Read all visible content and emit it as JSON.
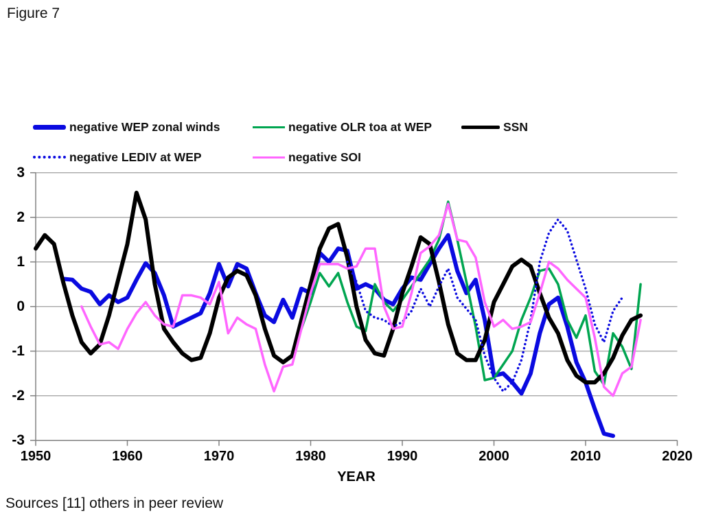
{
  "figure_label": "Figure 7",
  "source_note": "Sources [11] others in peer review",
  "colors": {
    "wep_blue": "#0a0ae0",
    "olr_green": "#00a550",
    "ssn_black": "#000000",
    "soi_pink": "#ff66ff",
    "gridline": "#a6a6a6",
    "axis": "#808080"
  },
  "chart_data": {
    "type": "line",
    "title": "",
    "xlabel": "YEAR",
    "ylabel": "",
    "xlim": [
      1950,
      2020
    ],
    "ylim": [
      -3,
      3
    ],
    "x_ticks": [
      1950,
      1960,
      1970,
      1980,
      1990,
      2000,
      2010,
      2020
    ],
    "y_ticks": [
      3,
      2,
      1,
      0,
      -1,
      -2,
      -3
    ],
    "grid": "horizontal",
    "legend_position": "top",
    "legend_rows": [
      [
        0,
        1,
        2
      ],
      [
        3,
        4
      ]
    ],
    "series": [
      {
        "name": "negative WEP zonal winds",
        "color": "#0a0ae0",
        "style": "solid",
        "width": 6,
        "start_year": 1953,
        "values": [
          0.62,
          0.6,
          0.4,
          0.33,
          0.05,
          0.25,
          0.1,
          0.2,
          0.6,
          0.97,
          0.75,
          0.25,
          -0.45,
          -0.35,
          -0.25,
          -0.15,
          0.3,
          0.95,
          0.45,
          0.95,
          0.85,
          0.3,
          -0.2,
          -0.35,
          0.15,
          -0.25,
          0.4,
          0.3,
          1.2,
          1.0,
          1.3,
          1.25,
          0.4,
          0.5,
          0.4,
          0.15,
          0.05,
          0.4,
          0.65,
          0.6,
          0.95,
          1.3,
          1.6,
          0.8,
          0.3,
          0.6,
          -0.3,
          -1.55,
          -1.5,
          -1.7,
          -1.95,
          -1.5,
          -0.6,
          0.05,
          0.2,
          -0.45,
          -1.25,
          -1.7,
          -2.3,
          -2.85,
          -2.9
        ]
      },
      {
        "name": "negative OLR toa at WEP",
        "color": "#00a550",
        "style": "solid",
        "width": 3.5,
        "start_year": 1979,
        "values": [
          -0.5,
          0.1,
          0.75,
          0.45,
          0.75,
          0.1,
          -0.45,
          -0.55,
          0.5,
          0.1,
          -0.1,
          0.15,
          0.45,
          0.75,
          1.05,
          1.5,
          2.35,
          1.5,
          0.55,
          -0.45,
          -1.65,
          -1.6,
          -1.3,
          -1.0,
          -0.3,
          0.2,
          0.8,
          0.85,
          0.5,
          -0.3,
          -0.7,
          -0.2,
          -1.45,
          -1.75,
          -0.6,
          -0.9,
          -1.4,
          0.5
        ]
      },
      {
        "name": "SSN",
        "color": "#000000",
        "style": "solid",
        "width": 6,
        "start_year": 1950,
        "values": [
          1.3,
          1.6,
          1.4,
          0.55,
          -0.2,
          -0.8,
          -1.05,
          -0.85,
          -0.2,
          0.6,
          1.4,
          2.55,
          1.95,
          0.5,
          -0.5,
          -0.8,
          -1.05,
          -1.2,
          -1.15,
          -0.6,
          0.2,
          0.65,
          0.8,
          0.7,
          0.25,
          -0.5,
          -1.1,
          -1.25,
          -1.1,
          -0.3,
          0.5,
          1.3,
          1.75,
          1.85,
          1.1,
          0.0,
          -0.75,
          -1.05,
          -1.1,
          -0.5,
          0.3,
          0.9,
          1.55,
          1.4,
          0.55,
          -0.4,
          -1.05,
          -1.2,
          -1.2,
          -0.75,
          0.1,
          0.5,
          0.9,
          1.05,
          0.9,
          0.3,
          -0.25,
          -0.6,
          -1.2,
          -1.55,
          -1.7,
          -1.7,
          -1.5,
          -1.15,
          -0.65,
          -0.3,
          -0.2
        ]
      },
      {
        "name": "negative LEDIV at WEP",
        "color": "#0a0ae0",
        "style": "dotted",
        "width": 3.5,
        "start_year": 1984,
        "values": [
          1.0,
          0.55,
          -0.1,
          -0.25,
          -0.3,
          -0.45,
          -0.35,
          -0.1,
          0.4,
          0.0,
          0.45,
          0.85,
          0.2,
          -0.05,
          -0.3,
          -1.1,
          -1.6,
          -1.9,
          -1.7,
          -1.2,
          -0.3,
          1.0,
          1.65,
          1.95,
          1.7,
          1.05,
          0.4,
          -0.4,
          -0.8,
          -0.1,
          0.2
        ]
      },
      {
        "name": "negative SOI",
        "color": "#ff66ff",
        "style": "solid",
        "width": 3.5,
        "start_year": 1955,
        "values": [
          0.0,
          -0.45,
          -0.85,
          -0.8,
          -0.95,
          -0.5,
          -0.15,
          0.1,
          -0.2,
          -0.4,
          -0.45,
          0.25,
          0.25,
          0.2,
          0.05,
          0.55,
          -0.6,
          -0.25,
          -0.4,
          -0.5,
          -1.3,
          -1.9,
          -1.35,
          -1.3,
          -0.5,
          0.3,
          0.95,
          0.95,
          0.95,
          0.85,
          0.9,
          1.3,
          1.3,
          0.0,
          -0.5,
          -0.45,
          0.3,
          1.2,
          1.35,
          1.6,
          2.3,
          1.5,
          1.45,
          1.1,
          0.1,
          -0.45,
          -0.3,
          -0.5,
          -0.45,
          -0.35,
          0.3,
          1.0,
          0.85,
          0.6,
          0.4,
          0.2,
          -0.7,
          -1.8,
          -2.0,
          -1.5,
          -1.35,
          -0.3
        ]
      }
    ]
  }
}
